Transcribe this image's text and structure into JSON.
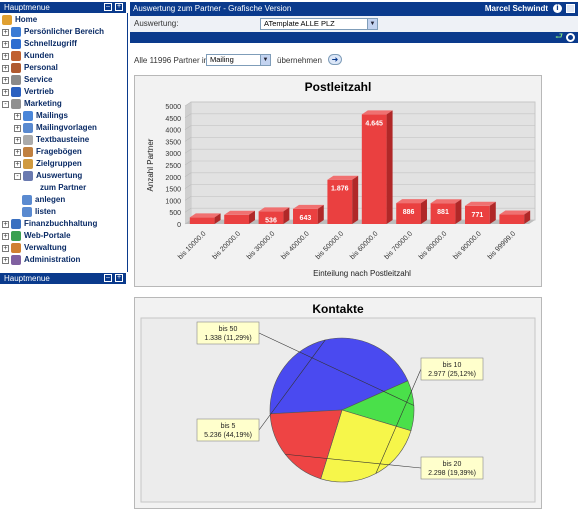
{
  "sidebar": {
    "header_label": "Hauptmenue",
    "footer_label": "Hauptmenue",
    "items": [
      {
        "label": "Home",
        "icon": "home-icon",
        "level": 0,
        "expander": "",
        "color": "#e0a030"
      },
      {
        "label": "Persönlicher Bereich",
        "icon": "person-icon",
        "level": 0,
        "expander": "+",
        "color": "#3a7bd5"
      },
      {
        "label": "Schnellzugriff",
        "icon": "arrow-icon",
        "level": 0,
        "expander": "+",
        "color": "#2e6dd0"
      },
      {
        "label": "Kunden",
        "icon": "customers-icon",
        "level": 0,
        "expander": "+",
        "color": "#c06030"
      },
      {
        "label": "Personal",
        "icon": "staff-icon",
        "level": 0,
        "expander": "+",
        "color": "#b05a30"
      },
      {
        "label": "Service",
        "icon": "tools-icon",
        "level": 0,
        "expander": "+",
        "color": "#8a8a8a"
      },
      {
        "label": "Vertrieb",
        "icon": "bar-chart-icon",
        "level": 0,
        "expander": "+",
        "color": "#2a60c0"
      },
      {
        "label": "Marketing",
        "icon": "pencil-icon",
        "level": 0,
        "expander": "-",
        "color": "#909090"
      },
      {
        "label": "Mailings",
        "icon": "mail-icon",
        "level": 1,
        "expander": "+",
        "color": "#4a86d9"
      },
      {
        "label": "Mailingvorlagen",
        "icon": "template-icon",
        "level": 1,
        "expander": "+",
        "color": "#5a8ad0"
      },
      {
        "label": "Textbausteine",
        "icon": "text-block-icon",
        "level": 1,
        "expander": "+",
        "color": "#aaaaaa"
      },
      {
        "label": "Fragebögen",
        "icon": "questionnaire-icon",
        "level": 1,
        "expander": "+",
        "color": "#c08040"
      },
      {
        "label": "Zielgruppen",
        "icon": "target-group-icon",
        "level": 1,
        "expander": "+",
        "color": "#d09a40"
      },
      {
        "label": "Auswertung",
        "icon": "analysis-icon",
        "level": 1,
        "expander": "-",
        "color": "#6a7ab0"
      },
      {
        "label": "zum Partner",
        "icon": "",
        "level": 2,
        "expander": "",
        "color": ""
      },
      {
        "label": "anlegen",
        "icon": "create-icon",
        "level": 2,
        "expander": "",
        "color": "#5a8ad0"
      },
      {
        "label": "listen",
        "icon": "list-icon",
        "level": 2,
        "expander": "",
        "color": "#5a8ad0"
      },
      {
        "label": "Finanzbuchhaltung",
        "icon": "ledger-icon",
        "level": 0,
        "expander": "+",
        "color": "#3a70c0"
      },
      {
        "label": "Web-Portale",
        "icon": "globe-icon",
        "level": 0,
        "expander": "+",
        "color": "#3aa050"
      },
      {
        "label": "Verwaltung",
        "icon": "admin-gear-icon",
        "level": 0,
        "expander": "+",
        "color": "#d08030"
      },
      {
        "label": "Administration",
        "icon": "administration-icon",
        "level": 0,
        "expander": "+",
        "color": "#8060a0"
      }
    ]
  },
  "header": {
    "title": "Auswertung zum Partner - Grafische Version",
    "user": "Marcel Schwindt"
  },
  "filter": {
    "label": "Auswertung:",
    "selected": "ATemplate ALLE PLZ"
  },
  "partner_bar": {
    "prefix": "Alle 11996 Partner in",
    "selected": "Mailing",
    "action": "übernehmen"
  },
  "colors": {
    "nav_blue": "#0a3a8c",
    "bar_red": "#e84040",
    "pie_blue": "#4a4af0",
    "pie_green": "#4ae04a",
    "pie_yellow": "#f6f64a",
    "pie_red": "#ee4444",
    "label_bg": "#ffffcc"
  },
  "chart_data": [
    {
      "type": "bar",
      "title": "Postleitzahl",
      "xlabel": "Einteilung nach Postleitzahl",
      "ylabel": "Anzahl Partner",
      "categories": [
        "bis 10000.0",
        "bis 20000.0",
        "bis 30000.0",
        "bis 40000.0",
        "bis 50000.0",
        "bis 60000.0",
        "bis 70000.0",
        "bis 80000.0",
        "bis 90000.0",
        "bis 99999.0"
      ],
      "values": [
        280,
        390,
        536,
        643,
        1876,
        4645,
        886,
        881,
        771,
        400
      ],
      "value_labels": [
        "",
        "",
        "536",
        "643",
        "1.876",
        "4.645",
        "886",
        "881",
        "771",
        ""
      ],
      "yticks": [
        "0",
        "500",
        "1000",
        "1500",
        "2000",
        "2500",
        "3000",
        "3500",
        "4000",
        "4500",
        "5000"
      ],
      "ylim": [
        0,
        5000
      ],
      "grid": true
    },
    {
      "type": "pie",
      "title": "Kontakte",
      "slices": [
        {
          "label": "bis 5",
          "value": 5236,
          "text": "5.236 (44,19%)",
          "color": "#4a4af0"
        },
        {
          "label": "bis 50",
          "value": 1338,
          "text": "1.338 (11,29%)",
          "color": "#4ae04a"
        },
        {
          "label": "bis 10",
          "value": 2977,
          "text": "2.977 (25,12%)",
          "color": "#f6f64a"
        },
        {
          "label": "bis 20",
          "value": 2298,
          "text": "2.298 (19,39%)",
          "color": "#ee4444"
        }
      ]
    }
  ]
}
